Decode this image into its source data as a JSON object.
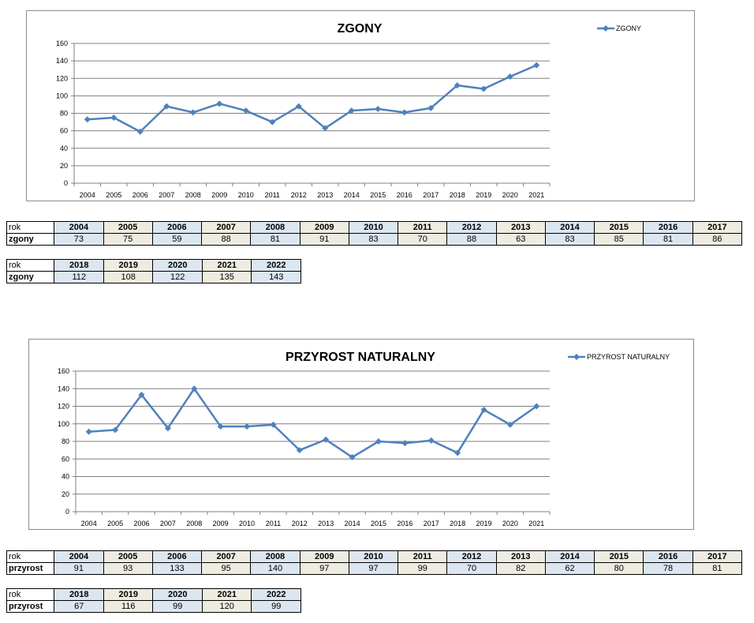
{
  "charts": {
    "zgony": {
      "title": "ZGONY",
      "legend": "ZGONY"
    },
    "przyrost": {
      "title": "PRZYROST NATURALNY",
      "legend": "PRZYROST NATURALNY"
    }
  },
  "chart_data": [
    {
      "type": "line",
      "title": "ZGONY",
      "xlabel": "",
      "ylabel": "",
      "ylim": [
        0,
        160
      ],
      "yticks": [
        0,
        20,
        40,
        60,
        80,
        100,
        120,
        140,
        160
      ],
      "grid": true,
      "legend_position": "top-right",
      "categories": [
        "2004",
        "2005",
        "2006",
        "2007",
        "2008",
        "2009",
        "2010",
        "2011",
        "2012",
        "2013",
        "2014",
        "2015",
        "2016",
        "2017",
        "2018",
        "2019",
        "2020",
        "2021"
      ],
      "series": [
        {
          "name": "ZGONY",
          "color": "#4f81bd",
          "values": [
            73,
            75,
            59,
            88,
            81,
            91,
            83,
            70,
            88,
            63,
            83,
            85,
            81,
            86,
            112,
            108,
            122,
            135
          ]
        }
      ]
    },
    {
      "type": "line",
      "title": "PRZYROST NATURALNY",
      "xlabel": "",
      "ylabel": "",
      "ylim": [
        0,
        160
      ],
      "yticks": [
        0,
        20,
        40,
        60,
        80,
        100,
        120,
        140,
        160
      ],
      "grid": true,
      "legend_position": "top-right",
      "categories": [
        "2004",
        "2005",
        "2006",
        "2007",
        "2008",
        "2009",
        "2010",
        "2011",
        "2012",
        "2013",
        "2014",
        "2015",
        "2016",
        "2017",
        "2018",
        "2019",
        "2020",
        "2021"
      ],
      "series": [
        {
          "name": "PRZYROST NATURALNY",
          "color": "#4f81bd",
          "values": [
            91,
            93,
            133,
            95,
            140,
            97,
            97,
            99,
            70,
            82,
            62,
            80,
            78,
            81,
            67,
            116,
            99,
            120
          ]
        }
      ]
    }
  ],
  "tables": {
    "zgony_1": {
      "header_label": "rok",
      "row_label": "zgony",
      "years": [
        "2004",
        "2005",
        "2006",
        "2007",
        "2008",
        "2009",
        "2010",
        "2011",
        "2012",
        "2013",
        "2014",
        "2015",
        "2016",
        "2017"
      ],
      "values": [
        "73",
        "75",
        "59",
        "88",
        "81",
        "91",
        "83",
        "70",
        "88",
        "63",
        "83",
        "85",
        "81",
        "86"
      ]
    },
    "zgony_2": {
      "header_label": "rok",
      "row_label": "zgony",
      "years": [
        "2018",
        "2019",
        "2020",
        "2021",
        "2022"
      ],
      "values": [
        "112",
        "108",
        "122",
        "135",
        "143"
      ]
    },
    "przyrost_1": {
      "header_label": "rok",
      "row_label": "przyrost",
      "years": [
        "2004",
        "2005",
        "2006",
        "2007",
        "2008",
        "2009",
        "2010",
        "2011",
        "2012",
        "2013",
        "2014",
        "2015",
        "2016",
        "2017"
      ],
      "values": [
        "91",
        "93",
        "133",
        "95",
        "140",
        "97",
        "97",
        "99",
        "70",
        "82",
        "62",
        "80",
        "78",
        "81"
      ]
    },
    "przyrost_2": {
      "header_label": "rok",
      "row_label": "przyrost",
      "years": [
        "2018",
        "2019",
        "2020",
        "2021",
        "2022"
      ],
      "values": [
        "67",
        "116",
        "99",
        "120",
        "99"
      ]
    }
  }
}
